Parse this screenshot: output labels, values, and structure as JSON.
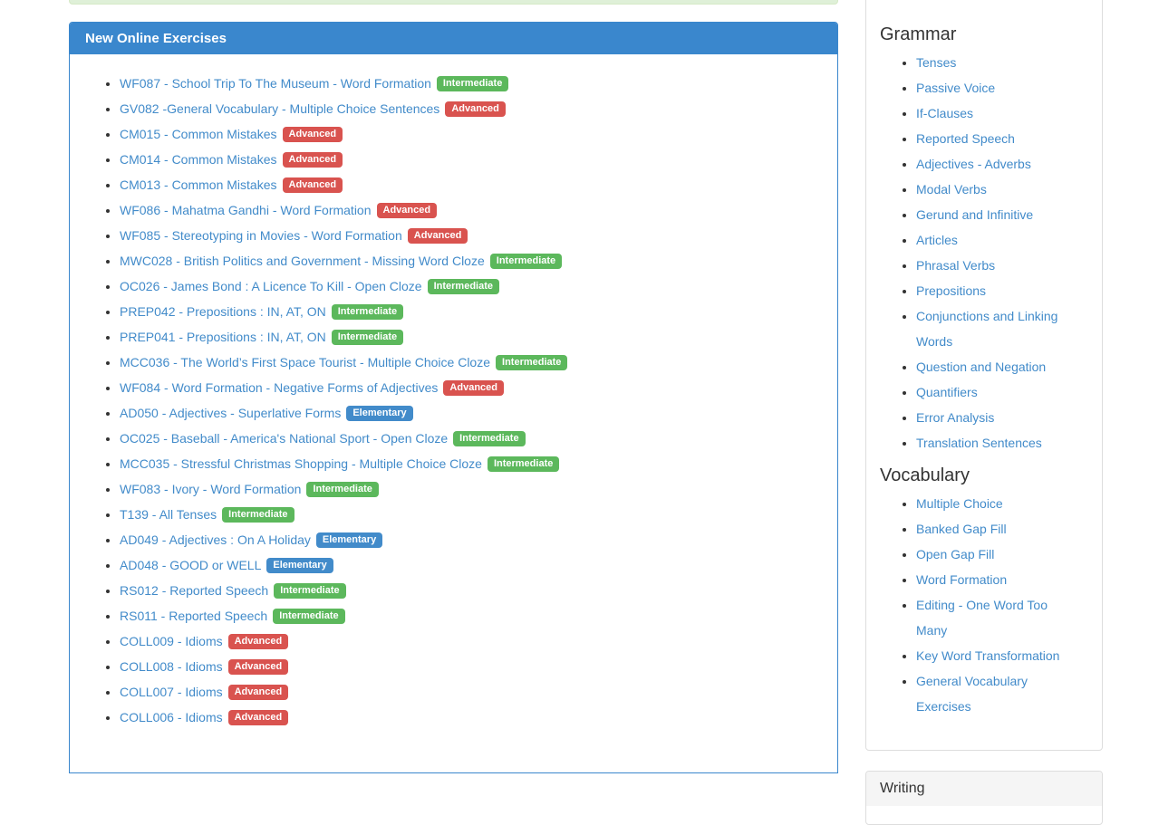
{
  "colors": {
    "primary_blue": "#3a87cd",
    "link_blue": "#428bca",
    "success_green": "#5cb85c",
    "danger_red": "#d9534f",
    "alert_bg": "#dff0d8",
    "alert_border": "#d6e9c6",
    "panel_border_gray": "#dddddd",
    "panel_header_gray": "#f5f5f5"
  },
  "main_panel": {
    "title": "New Online Exercises",
    "exercises": [
      {
        "title": "WF087 - School Trip To The Museum - Word Formation",
        "level": "Intermediate"
      },
      {
        "title": "GV082 -General Vocabulary - Multiple Choice Sentences",
        "level": "Advanced"
      },
      {
        "title": "CM015 - Common Mistakes",
        "level": "Advanced"
      },
      {
        "title": "CM014 - Common Mistakes",
        "level": "Advanced"
      },
      {
        "title": "CM013 - Common Mistakes",
        "level": "Advanced"
      },
      {
        "title": "WF086 - Mahatma Gandhi - Word Formation",
        "level": "Advanced"
      },
      {
        "title": "WF085 - Stereotyping in Movies - Word Formation",
        "level": "Advanced"
      },
      {
        "title": "MWC028 - British Politics and Government - Missing Word Cloze",
        "level": "Intermediate"
      },
      {
        "title": "OC026 - James Bond : A Licence To Kill - Open Cloze",
        "level": "Intermediate"
      },
      {
        "title": "PREP042 - Prepositions : IN, AT, ON",
        "level": "Intermediate"
      },
      {
        "title": "PREP041 - Prepositions : IN, AT, ON",
        "level": "Intermediate"
      },
      {
        "title": "MCC036 - The World’s First Space Tourist - Multiple Choice Cloze",
        "level": "Intermediate"
      },
      {
        "title": "WF084 - Word Formation - Negative Forms of Adjectives",
        "level": "Advanced"
      },
      {
        "title": "AD050 - Adjectives - Superlative Forms",
        "level": "Elementary"
      },
      {
        "title": "OC025 - Baseball - America's National Sport - Open Cloze",
        "level": "Intermediate"
      },
      {
        "title": "MCC035 - Stressful Christmas Shopping - Multiple Choice Cloze",
        "level": "Intermediate"
      },
      {
        "title": "WF083 - Ivory - Word Formation",
        "level": "Intermediate"
      },
      {
        "title": "T139 - All Tenses",
        "level": "Intermediate"
      },
      {
        "title": "AD049 - Adjectives : On A Holiday",
        "level": "Elementary"
      },
      {
        "title": "AD048 - GOOD or WELL",
        "level": "Elementary"
      },
      {
        "title": "RS012 - Reported Speech",
        "level": "Intermediate"
      },
      {
        "title": "RS011 - Reported Speech",
        "level": "Intermediate"
      },
      {
        "title": "COLL009 - Idioms",
        "level": "Advanced"
      },
      {
        "title": "COLL008 - Idioms",
        "level": "Advanced"
      },
      {
        "title": "COLL007 - Idioms",
        "level": "Advanced"
      },
      {
        "title": "COLL006 - Idioms",
        "level": "Advanced"
      }
    ]
  },
  "sidebar": {
    "sections": [
      {
        "heading": "Grammar",
        "items": [
          "Tenses",
          "Passive Voice",
          "If-Clauses",
          "Reported Speech",
          "Adjectives - Adverbs",
          "Modal Verbs",
          "Gerund and Infinitive",
          "Articles",
          "Phrasal Verbs",
          "Prepositions",
          "Conjunctions and Linking Words",
          "Question and Negation",
          "Quantifiers",
          "Error Analysis",
          "Translation Sentences"
        ]
      },
      {
        "heading": "Vocabulary",
        "items": [
          "Multiple Choice",
          "Banked Gap Fill",
          "Open Gap Fill",
          "Word Formation",
          "Editing - One Word Too Many",
          "Key Word Transformation",
          "General Vocabulary Exercises"
        ]
      }
    ],
    "writing_panel": {
      "heading": "Writing"
    }
  }
}
